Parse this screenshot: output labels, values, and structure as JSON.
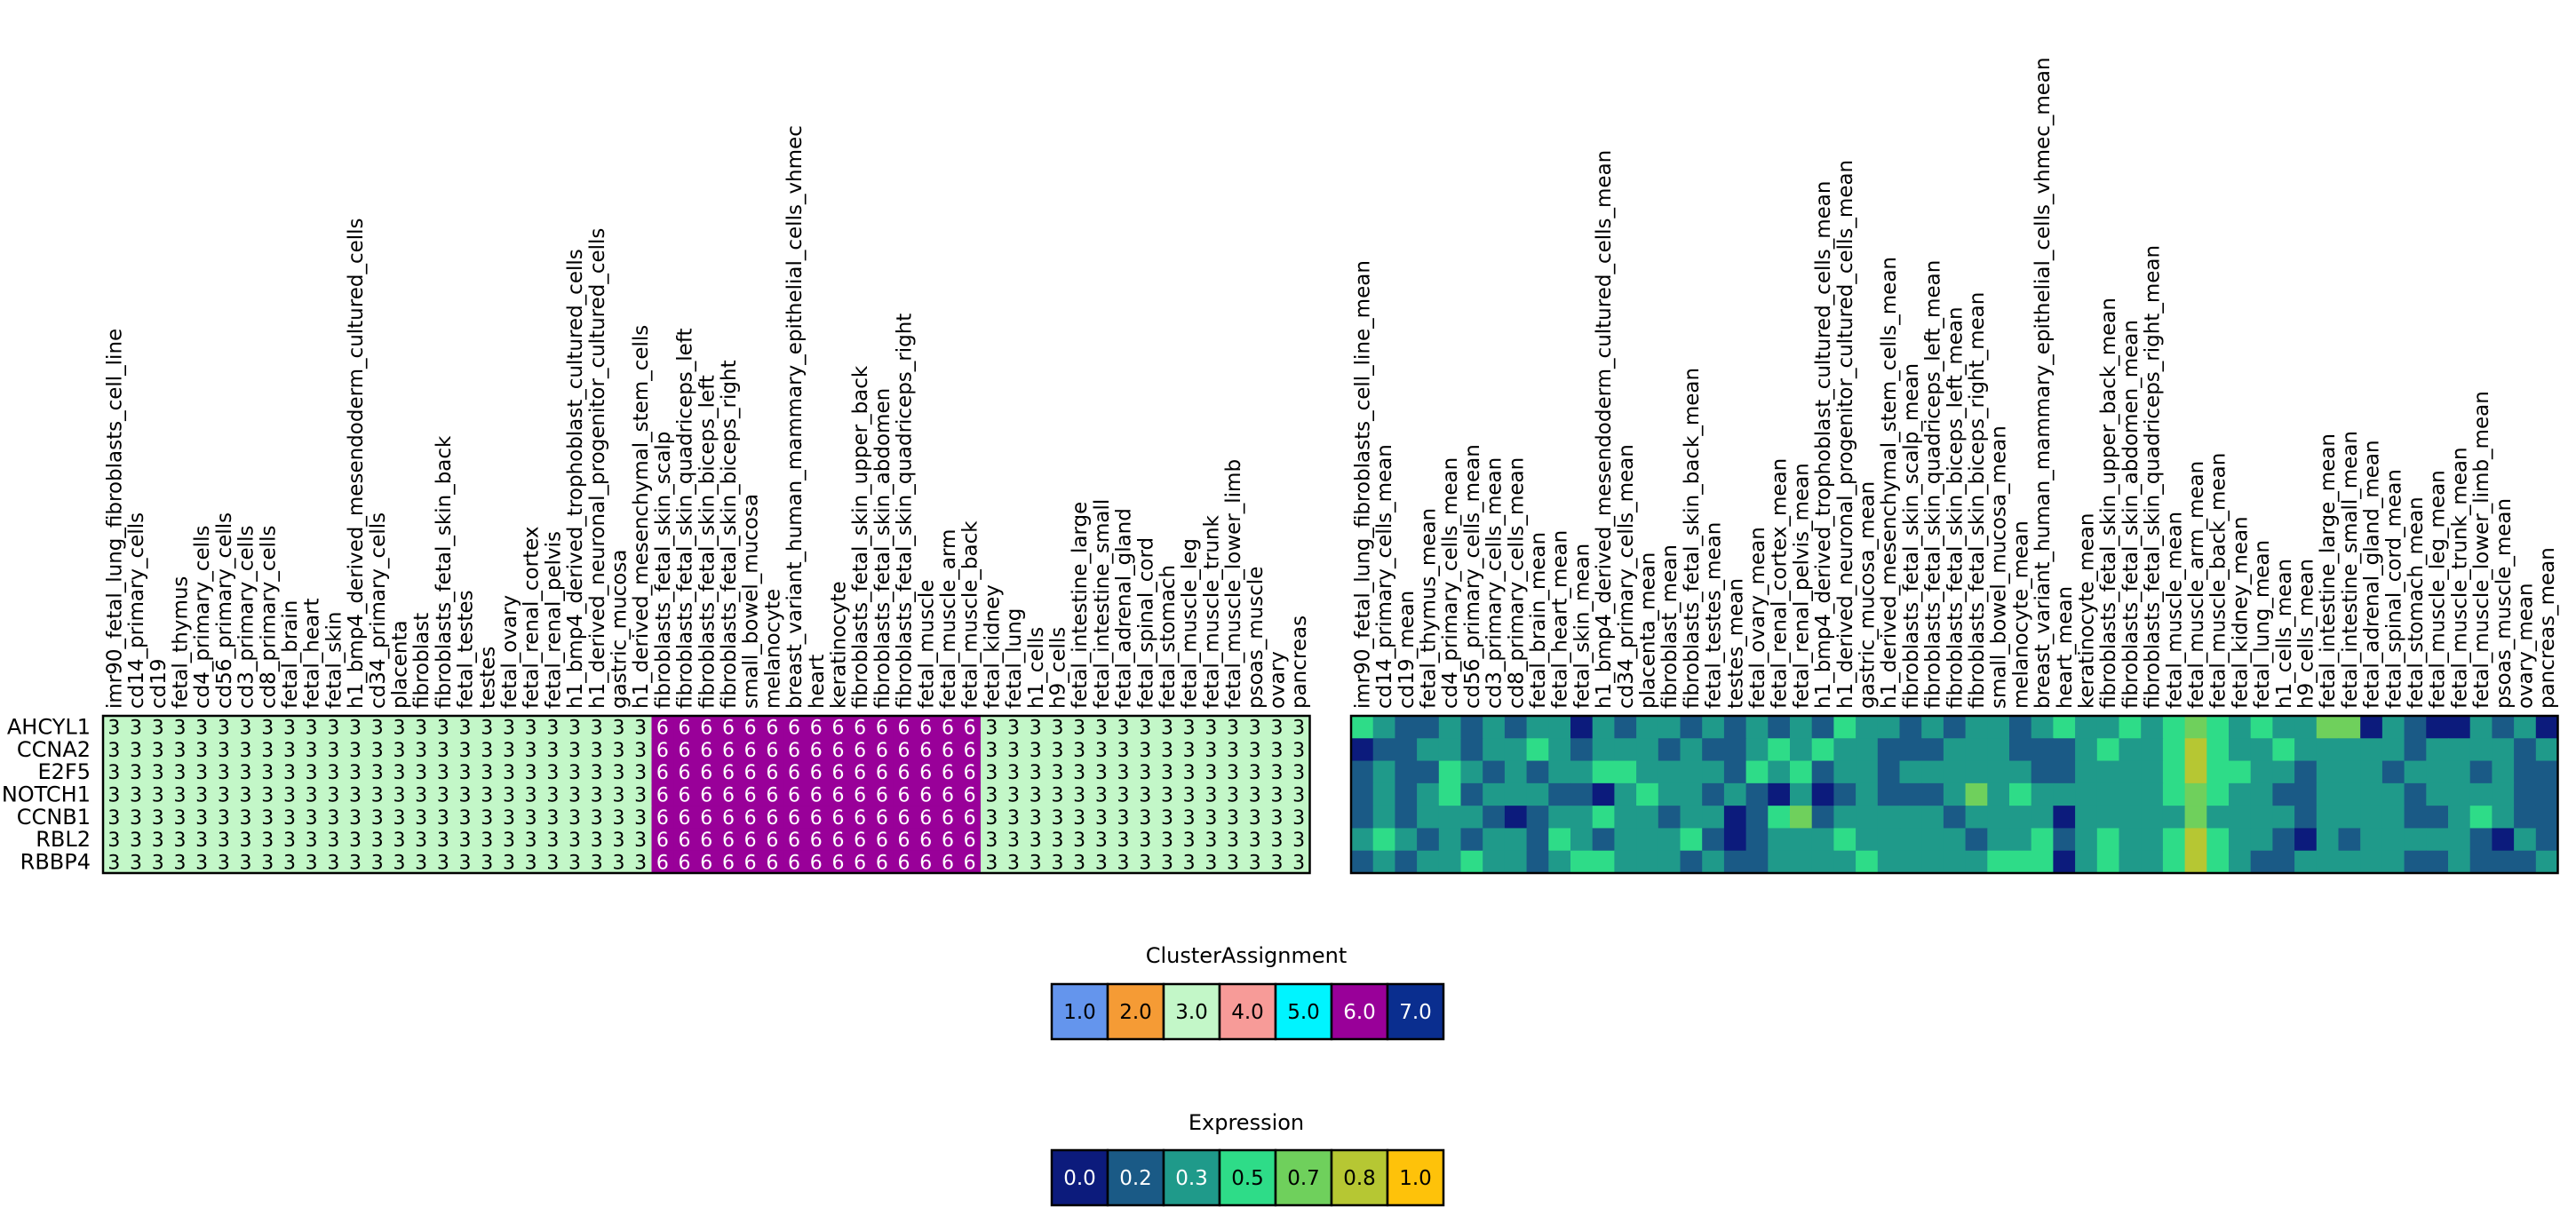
{
  "chart_data": [
    {
      "type": "heatmap",
      "title": "",
      "genes": [
        "AHCYL1",
        "CCNA2",
        "E2F5",
        "NOTCH1",
        "CCNB1",
        "RBL2",
        "RBBP4"
      ],
      "columns": [
        "imr90_fetal_lung_fibroblasts_cell_line",
        "cd14_primary_cells",
        "cd19",
        "fetal_thymus",
        "cd4_primary_cells",
        "cd56_primary_cells",
        "cd3_primary_cells",
        "cd8_primary_cells",
        "fetal_brain",
        "fetal_heart",
        "fetal_skin",
        "h1_bmp4_derived_mesendoderm_cultured_cells",
        "cd34_primary_cells",
        "placenta",
        "fibroblast",
        "fibroblasts_fetal_skin_back",
        "fetal_testes",
        "testes",
        "fetal_ovary",
        "fetal_renal_cortex",
        "fetal_renal_pelvis",
        "h1_bmp4_derived_trophoblast_cultured_cells",
        "h1_derived_neuronal_progenitor_cultured_cells",
        "gastric_mucosa",
        "h1_derived_mesenchymal_stem_cells",
        "fibroblasts_fetal_skin_scalp",
        "fibroblasts_fetal_skin_quadriceps_left",
        "fibroblasts_fetal_skin_biceps_left",
        "fibroblasts_fetal_skin_biceps_right",
        "small_bowel_mucosa",
        "melanocyte",
        "breast_variant_human_mammary_epithelial_cells_vhmec",
        "heart",
        "keratinocyte",
        "fibroblasts_fetal_skin_upper_back",
        "fibroblasts_fetal_skin_abdomen",
        "fibroblasts_fetal_skin_quadriceps_right",
        "fetal_muscle",
        "fetal_muscle_arm",
        "fetal_muscle_back",
        "fetal_kidney",
        "fetal_lung",
        "h1_cells",
        "h9_cells",
        "fetal_intestine_large",
        "fetal_intestine_small",
        "fetal_adrenal_gland",
        "fetal_spinal_cord",
        "fetal_stomach",
        "fetal_muscle_leg",
        "fetal_muscle_trunk",
        "fetal_muscle_lower_limb",
        "psoas_muscle",
        "ovary",
        "pancreas"
      ],
      "cluster_per_column": [
        3,
        3,
        3,
        3,
        3,
        3,
        3,
        3,
        3,
        3,
        3,
        3,
        3,
        3,
        3,
        3,
        3,
        3,
        3,
        3,
        3,
        3,
        3,
        3,
        3,
        6,
        6,
        6,
        6,
        6,
        6,
        6,
        6,
        6,
        6,
        6,
        6,
        6,
        6,
        6,
        3,
        3,
        3,
        3,
        3,
        3,
        3,
        3,
        3,
        3,
        3,
        3,
        3,
        3,
        3
      ],
      "cell_text_color_on_dark": "#ffffff",
      "cell_text_color_on_light": "#000000"
    },
    {
      "type": "heatmap",
      "title": "",
      "genes": [
        "AHCYL1",
        "CCNA2",
        "E2F5",
        "NOTCH1",
        "CCNB1",
        "RBL2",
        "RBBP4"
      ],
      "columns": [
        "imr90_fetal_lung_fibroblasts_cell_line_mean",
        "cd14_primary_cells_mean",
        "cd19_mean",
        "fetal_thymus_mean",
        "cd4_primary_cells_mean",
        "cd56_primary_cells_mean",
        "cd3_primary_cells_mean",
        "cd8_primary_cells_mean",
        "fetal_brain_mean",
        "fetal_heart_mean",
        "fetal_skin_mean",
        "h1_bmp4_derived_mesendoderm_cultured_cells_mean",
        "cd34_primary_cells_mean",
        "placenta_mean",
        "fibroblast_mean",
        "fibroblasts_fetal_skin_back_mean",
        "fetal_testes_mean",
        "testes_mean",
        "fetal_ovary_mean",
        "fetal_renal_cortex_mean",
        "fetal_renal_pelvis_mean",
        "h1_bmp4_derived_trophoblast_cultured_cells_mean",
        "h1_derived_neuronal_progenitor_cultured_cells_mean",
        "gastric_mucosa_mean",
        "h1_derived_mesenchymal_stem_cells_mean",
        "fibroblasts_fetal_skin_scalp_mean",
        "fibroblasts_fetal_skin_quadriceps_left_mean",
        "fibroblasts_fetal_skin_biceps_left_mean",
        "fibroblasts_fetal_skin_biceps_right_mean",
        "small_bowel_mucosa_mean",
        "melanocyte_mean",
        "breast_variant_human_mammary_epithelial_cells_vhmec_mean",
        "heart_mean",
        "keratinocyte_mean",
        "fibroblasts_fetal_skin_upper_back_mean",
        "fibroblasts_fetal_skin_abdomen_mean",
        "fibroblasts_fetal_skin_quadriceps_right_mean",
        "fetal_muscle_mean",
        "fetal_muscle_arm_mean",
        "fetal_muscle_back_mean",
        "fetal_kidney_mean",
        "fetal_lung_mean",
        "h1_cells_mean",
        "h9_cells_mean",
        "fetal_intestine_large_mean",
        "fetal_intestine_small_mean",
        "fetal_adrenal_gland_mean",
        "fetal_spinal_cord_mean",
        "fetal_stomach_mean",
        "fetal_muscle_leg_mean",
        "fetal_muscle_trunk_mean",
        "fetal_muscle_lower_limb_mean",
        "psoas_muscle_mean",
        "ovary_mean",
        "pancreas_mean"
      ],
      "values": [
        [
          0.5,
          0.3,
          0.2,
          0.2,
          0.3,
          0.2,
          0.3,
          0.2,
          0.3,
          0.3,
          0.0,
          0.3,
          0.2,
          0.3,
          0.3,
          0.2,
          0.3,
          0.2,
          0.3,
          0.2,
          0.3,
          0.2,
          0.5,
          0.3,
          0.3,
          0.2,
          0.3,
          0.2,
          0.3,
          0.3,
          0.2,
          0.3,
          0.5,
          0.3,
          0.3,
          0.5,
          0.3,
          0.5,
          0.7,
          0.5,
          0.3,
          0.5,
          0.3,
          0.3,
          0.7,
          0.7,
          0.0,
          0.3,
          0.2,
          0.0,
          0.0,
          0.3,
          0.2,
          0.3,
          0.0
        ],
        [
          0.0,
          0.2,
          0.2,
          0.3,
          0.3,
          0.2,
          0.3,
          0.3,
          0.5,
          0.3,
          0.2,
          0.3,
          0.3,
          0.3,
          0.2,
          0.3,
          0.2,
          0.2,
          0.3,
          0.5,
          0.3,
          0.5,
          0.3,
          0.3,
          0.2,
          0.2,
          0.2,
          0.3,
          0.3,
          0.3,
          0.2,
          0.2,
          0.2,
          0.3,
          0.5,
          0.3,
          0.3,
          0.5,
          0.8,
          0.5,
          0.3,
          0.3,
          0.5,
          0.3,
          0.3,
          0.3,
          0.3,
          0.3,
          0.2,
          0.3,
          0.3,
          0.3,
          0.3,
          0.2,
          0.3
        ],
        [
          0.2,
          0.3,
          0.2,
          0.2,
          0.5,
          0.3,
          0.2,
          0.3,
          0.2,
          0.3,
          0.3,
          0.5,
          0.5,
          0.3,
          0.3,
          0.3,
          0.3,
          0.2,
          0.5,
          0.3,
          0.5,
          0.2,
          0.3,
          0.3,
          0.2,
          0.3,
          0.3,
          0.3,
          0.3,
          0.3,
          0.3,
          0.2,
          0.2,
          0.3,
          0.3,
          0.3,
          0.3,
          0.5,
          0.8,
          0.5,
          0.5,
          0.3,
          0.3,
          0.2,
          0.3,
          0.3,
          0.3,
          0.2,
          0.3,
          0.3,
          0.3,
          0.2,
          0.3,
          0.2,
          0.2
        ],
        [
          0.2,
          0.3,
          0.2,
          0.3,
          0.5,
          0.2,
          0.3,
          0.3,
          0.3,
          0.2,
          0.2,
          0.0,
          0.3,
          0.5,
          0.3,
          0.3,
          0.2,
          0.3,
          0.2,
          0.0,
          0.3,
          0.0,
          0.2,
          0.3,
          0.2,
          0.2,
          0.2,
          0.3,
          0.7,
          0.3,
          0.5,
          0.3,
          0.3,
          0.3,
          0.3,
          0.3,
          0.3,
          0.5,
          0.7,
          0.5,
          0.3,
          0.3,
          0.2,
          0.2,
          0.3,
          0.3,
          0.3,
          0.3,
          0.2,
          0.3,
          0.3,
          0.3,
          0.3,
          0.2,
          0.2
        ],
        [
          0.2,
          0.3,
          0.2,
          0.3,
          0.3,
          0.3,
          0.2,
          0.0,
          0.2,
          0.3,
          0.3,
          0.5,
          0.3,
          0.3,
          0.2,
          0.3,
          0.3,
          0.0,
          0.2,
          0.5,
          0.7,
          0.2,
          0.3,
          0.3,
          0.3,
          0.3,
          0.3,
          0.2,
          0.3,
          0.3,
          0.3,
          0.3,
          0.0,
          0.3,
          0.3,
          0.3,
          0.3,
          0.3,
          0.7,
          0.3,
          0.3,
          0.3,
          0.3,
          0.2,
          0.3,
          0.3,
          0.3,
          0.3,
          0.2,
          0.2,
          0.3,
          0.5,
          0.3,
          0.2,
          0.2
        ],
        [
          0.3,
          0.5,
          0.3,
          0.2,
          0.3,
          0.2,
          0.3,
          0.3,
          0.2,
          0.5,
          0.3,
          0.2,
          0.3,
          0.3,
          0.3,
          0.5,
          0.2,
          0.0,
          0.2,
          0.3,
          0.3,
          0.3,
          0.5,
          0.3,
          0.3,
          0.3,
          0.3,
          0.3,
          0.2,
          0.3,
          0.3,
          0.5,
          0.2,
          0.3,
          0.5,
          0.3,
          0.3,
          0.5,
          0.8,
          0.5,
          0.3,
          0.3,
          0.2,
          0.0,
          0.3,
          0.2,
          0.3,
          0.3,
          0.3,
          0.3,
          0.3,
          0.2,
          0.0,
          0.3,
          0.2
        ],
        [
          0.2,
          0.3,
          0.2,
          0.3,
          0.3,
          0.5,
          0.3,
          0.3,
          0.2,
          0.3,
          0.5,
          0.5,
          0.3,
          0.3,
          0.3,
          0.2,
          0.3,
          0.2,
          0.2,
          0.3,
          0.3,
          0.3,
          0.3,
          0.5,
          0.3,
          0.3,
          0.3,
          0.3,
          0.3,
          0.5,
          0.5,
          0.5,
          0.0,
          0.3,
          0.5,
          0.3,
          0.3,
          0.5,
          0.8,
          0.5,
          0.3,
          0.2,
          0.2,
          0.3,
          0.3,
          0.3,
          0.3,
          0.3,
          0.2,
          0.2,
          0.3,
          0.2,
          0.2,
          0.2,
          0.3
        ]
      ]
    }
  ],
  "legends": {
    "cluster": {
      "title": "ClusterAssignment",
      "items": [
        {
          "label": "1.0",
          "color": "#6495ed",
          "text": "#000000"
        },
        {
          "label": "2.0",
          "color": "#f59b35",
          "text": "#000000"
        },
        {
          "label": "3.0",
          "color": "#c3f7c8",
          "text": "#000000"
        },
        {
          "label": "4.0",
          "color": "#f79b98",
          "text": "#000000"
        },
        {
          "label": "5.0",
          "color": "#00f4ff",
          "text": "#000000"
        },
        {
          "label": "6.0",
          "color": "#990099",
          "text": "#ffffff"
        },
        {
          "label": "7.0",
          "color": "#0a2e8f",
          "text": "#ffffff"
        }
      ]
    },
    "expression": {
      "title": "Expression",
      "items": [
        {
          "label": "0.0",
          "color": "#0c1b7c",
          "text": "#ffffff"
        },
        {
          "label": "0.2",
          "color": "#1a5a86",
          "text": "#ffffff"
        },
        {
          "label": "0.3",
          "color": "#1f9a8a",
          "text": "#ffffff"
        },
        {
          "label": "0.5",
          "color": "#2edc88",
          "text": "#000000"
        },
        {
          "label": "0.7",
          "color": "#6fd05c",
          "text": "#000000"
        },
        {
          "label": "0.8",
          "color": "#b6c733",
          "text": "#000000"
        },
        {
          "label": "1.0",
          "color": "#fec20a",
          "text": "#000000"
        }
      ]
    }
  }
}
